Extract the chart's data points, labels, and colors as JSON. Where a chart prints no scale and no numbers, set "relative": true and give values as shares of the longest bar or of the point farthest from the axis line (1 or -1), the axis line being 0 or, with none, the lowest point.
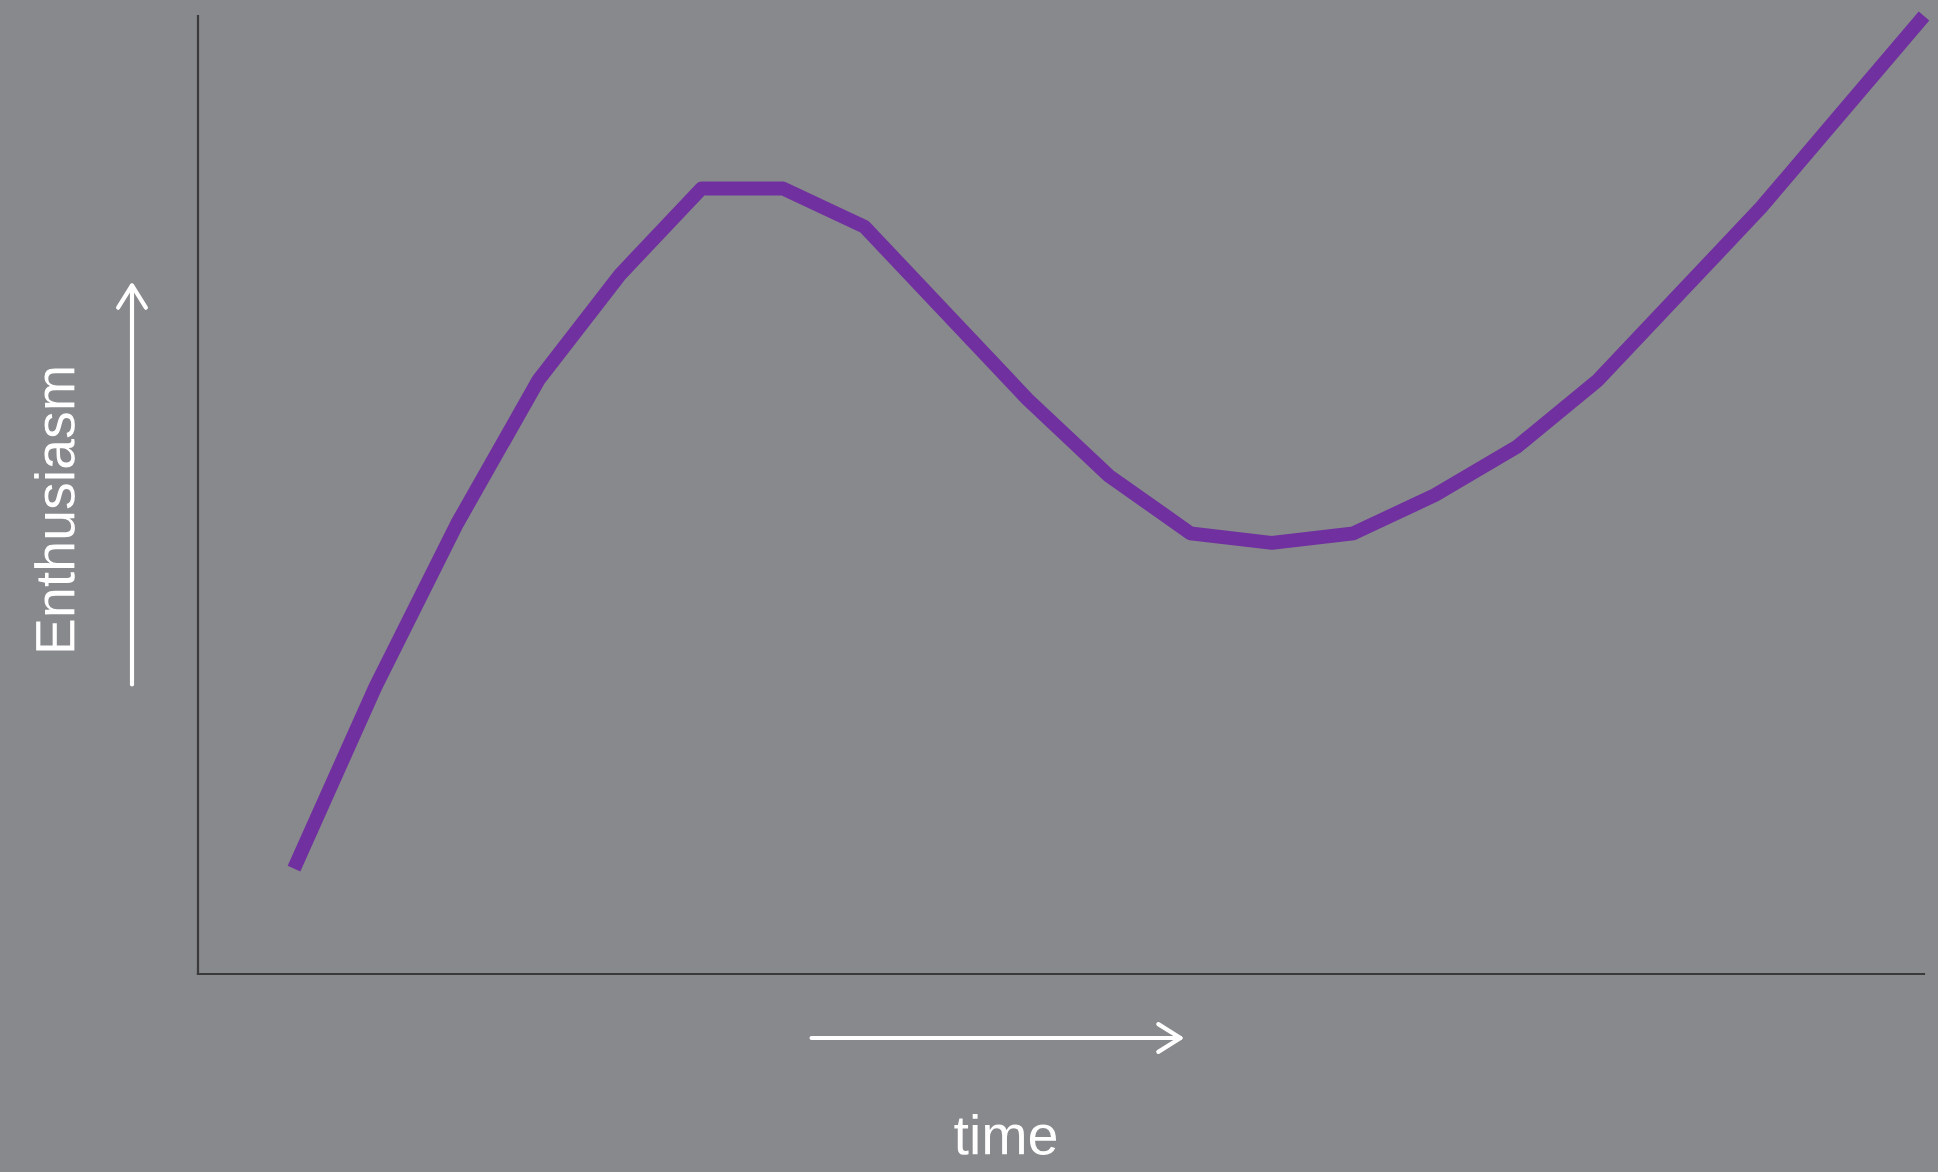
{
  "chart_data": {
    "type": "line",
    "relative": true,
    "xlabel": "time",
    "ylabel": "Enthusiasm",
    "categories": [
      null,
      null,
      null,
      null,
      null,
      null,
      null,
      null,
      null,
      null,
      null,
      null,
      null,
      null,
      null,
      null,
      null,
      null,
      null,
      null,
      null
    ],
    "series": [
      {
        "color": "#7030a0",
        "values": [
          0.11,
          0.3,
          0.47,
          0.62,
          0.73,
          0.82,
          0.82,
          0.78,
          0.69,
          0.6,
          0.52,
          0.46,
          0.45,
          0.46,
          0.5,
          0.55,
          0.62,
          0.71,
          0.8,
          0.9,
          1.0
        ]
      }
    ],
    "marker": "none",
    "line_style": "solid",
    "grid": false,
    "legend": false
  }
}
